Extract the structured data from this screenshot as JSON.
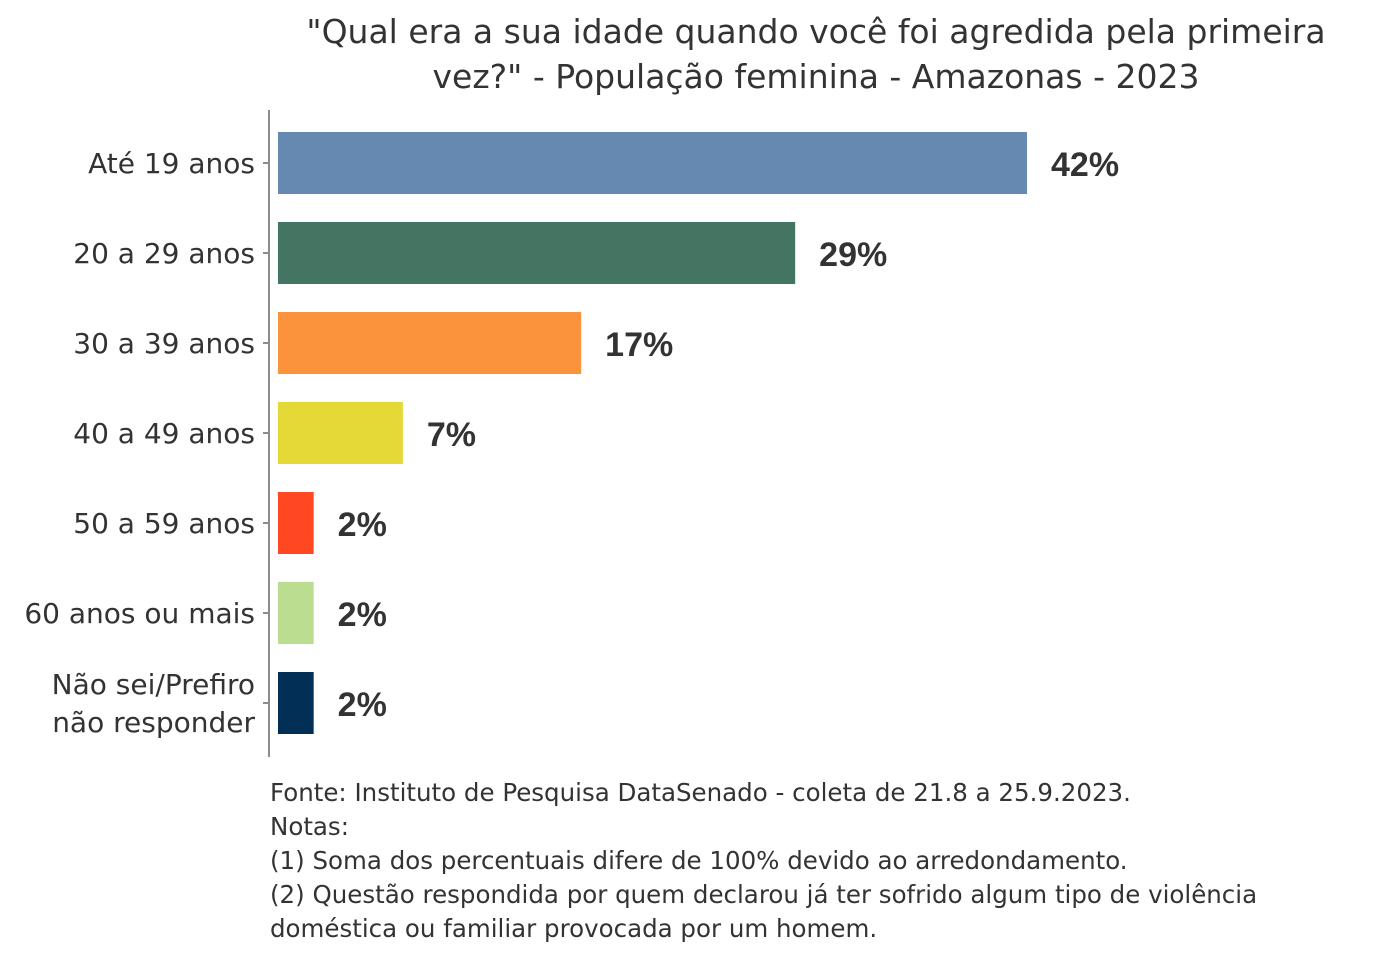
{
  "chart_data": {
    "type": "bar",
    "orientation": "horizontal",
    "title_lines": [
      "\"Qual era a sua idade quando você foi agredida pela primeira",
      "vez?\" - População feminina - Amazonas - 2023"
    ],
    "categories": [
      [
        "Até 19 anos"
      ],
      [
        "20 a 29 anos"
      ],
      [
        "30 a 39 anos"
      ],
      [
        "40 a 49 anos"
      ],
      [
        "50 a 59 anos"
      ],
      [
        "60 anos ou mais"
      ],
      [
        "Não sei/Prefiro",
        "não responder"
      ]
    ],
    "values": [
      42,
      29,
      17,
      7,
      2,
      2,
      2
    ],
    "value_labels": [
      "42%",
      "29%",
      "17%",
      "7%",
      "2%",
      "2%",
      "2%"
    ],
    "colors": [
      "#6589B0",
      "#447563",
      "#FB923C",
      "#E4D936",
      "#FF4822",
      "#BADD8F",
      "#022F55"
    ],
    "xlabel": "",
    "ylabel": "",
    "xlim": [
      0,
      42
    ],
    "grid": false,
    "legend": "none"
  },
  "footnotes": [
    "Fonte: Instituto de Pesquisa DataSenado - coleta de 21.8 a 25.9.2023.",
    "Notas:",
    "(1) Soma dos percentuais difere de 100% devido ao arredondamento.",
    "(2) Questão respondida por quem declarou já ter sofrido algum tipo de violência",
    "doméstica ou familiar provocada por um homem."
  ]
}
